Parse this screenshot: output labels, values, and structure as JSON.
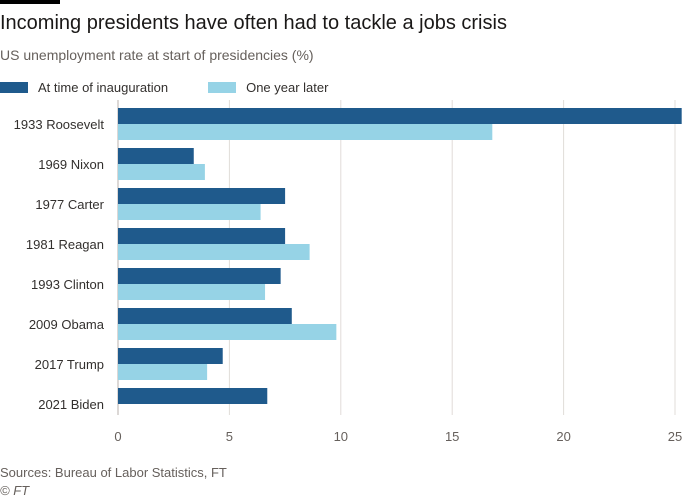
{
  "title": "Incoming presidents have often had to tackle a jobs crisis",
  "subtitle": "US unemployment rate at start of presidencies (%)",
  "source": "Sources: Bureau of Labor Statistics, FT",
  "copyright": "© FT",
  "colors": {
    "inauguration": "#1f5a8c",
    "one_year": "#96d3e6",
    "grid": "#e0dcd8"
  },
  "chart_data": {
    "type": "bar",
    "orientation": "horizontal",
    "title": "Incoming presidents have often had to tackle a jobs crisis",
    "xlabel": "",
    "ylabel": "",
    "xlim": [
      0,
      25
    ],
    "xticks": [
      0,
      5,
      10,
      15,
      20,
      25
    ],
    "grid": true,
    "legend_placement": "top-left",
    "categories": [
      "1933 Roosevelt",
      "1969 Nixon",
      "1977 Carter",
      "1981 Reagan",
      "1993 Clinton",
      "2009 Obama",
      "2017 Trump",
      "2021 Biden"
    ],
    "series": [
      {
        "name": "At time of inauguration",
        "values": [
          25.3,
          3.4,
          7.5,
          7.5,
          7.3,
          7.8,
          4.7,
          6.7
        ]
      },
      {
        "name": "One year later",
        "values": [
          16.8,
          3.9,
          6.4,
          8.6,
          6.6,
          9.8,
          4.0,
          null
        ]
      }
    ]
  }
}
